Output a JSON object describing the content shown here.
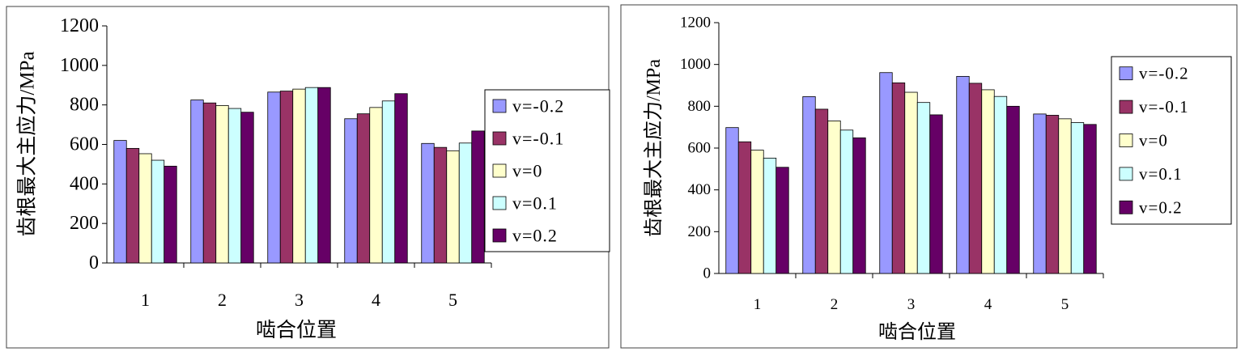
{
  "colors": {
    "frame": "#404040",
    "axis": "#000000",
    "bar_stroke": "#000000",
    "series": [
      "#9999ff",
      "#993366",
      "#ffffcc",
      "#ccffff",
      "#660066"
    ]
  },
  "chart_data": [
    {
      "type": "bar",
      "title": "",
      "xlabel": "啮合位置",
      "ylabel": "齿根最大主应力/MPa",
      "categories": [
        "1",
        "2",
        "3",
        "4",
        "5"
      ],
      "ylim": [
        0,
        1200
      ],
      "yticks": [
        "0",
        "200",
        "400",
        "600",
        "800",
        "1000",
        "1200"
      ],
      "grid": false,
      "legend_position": "right",
      "series": [
        {
          "name": "v=-0.2",
          "values": [
            620,
            825,
            865,
            730,
            605
          ]
        },
        {
          "name": "v=-0.1",
          "values": [
            580,
            810,
            870,
            755,
            585
          ]
        },
        {
          "name": "v=0",
          "values": [
            553,
            797,
            880,
            787,
            568
          ]
        },
        {
          "name": "v=0.1",
          "values": [
            520,
            782,
            888,
            820,
            607
          ]
        },
        {
          "name": "v=0.2",
          "values": [
            490,
            763,
            888,
            857,
            668
          ]
        }
      ]
    },
    {
      "type": "bar",
      "title": "",
      "xlabel": "啮合位置",
      "ylabel": "齿根最大主应力/MPa",
      "categories": [
        "1",
        "2",
        "3",
        "4",
        "5"
      ],
      "ylim": [
        0,
        1200
      ],
      "yticks": [
        "0",
        "200",
        "400",
        "600",
        "800",
        "1000",
        "1200"
      ],
      "grid": false,
      "legend_position": "right",
      "series": [
        {
          "name": "v=-0.2",
          "values": [
            698,
            846,
            961,
            943,
            763
          ]
        },
        {
          "name": "v=-0.1",
          "values": [
            630,
            786,
            912,
            910,
            757
          ]
        },
        {
          "name": "v=0",
          "values": [
            590,
            730,
            867,
            879,
            740
          ]
        },
        {
          "name": "v=0.1",
          "values": [
            552,
            686,
            818,
            847,
            722
          ]
        },
        {
          "name": "v=0.2",
          "values": [
            508,
            649,
            759,
            800,
            713
          ]
        }
      ]
    }
  ]
}
